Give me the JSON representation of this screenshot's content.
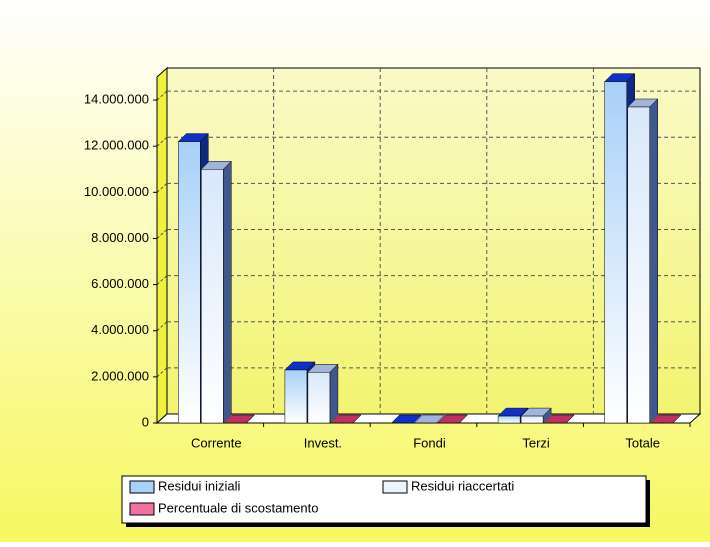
{
  "chart_data": {
    "type": "bar3d",
    "categories": [
      "Corrente",
      "Invest.",
      "Fondi",
      "Terzi",
      "Totale"
    ],
    "series": [
      {
        "name": "Residui iniziali",
        "color": "#a8d0f8",
        "values": [
          12200000,
          2300000,
          0,
          300000,
          14800000
        ]
      },
      {
        "name": "Residui riaccertati",
        "color": "#eef4fc",
        "values": [
          11000000,
          2200000,
          0,
          300000,
          13700000
        ]
      },
      {
        "name": "Percentuale di scostamento",
        "color": "#f070a0",
        "values": [
          0,
          0,
          0,
          0,
          0
        ]
      }
    ],
    "ylim": [
      0,
      15000000
    ],
    "yticks": [
      0,
      {
        "value": 2000000,
        "label": "2.000.000"
      },
      {
        "value": 4000000,
        "label": "4.000.000"
      },
      {
        "value": 6000000,
        "label": "6.000.000"
      },
      {
        "value": 8000000,
        "label": "8.000.000"
      },
      {
        "value": 10000000,
        "label": "10.000.000"
      },
      {
        "value": 12000000,
        "label": "12.000.000"
      },
      {
        "value": 14000000,
        "label": "14.000.000"
      }
    ],
    "grid": true
  }
}
